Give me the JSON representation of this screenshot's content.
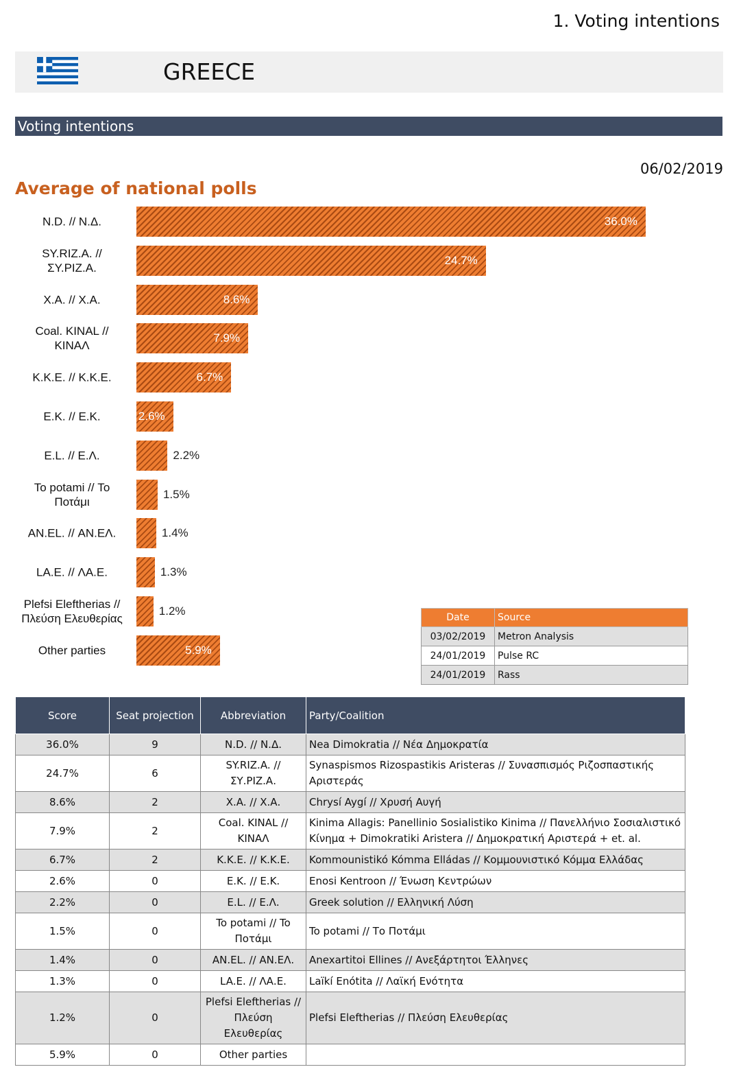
{
  "header": {
    "page_title": "1. Voting intentions",
    "country": "GREECE",
    "section": "Voting intentions",
    "date": "06/02/2019"
  },
  "chart_data": {
    "type": "bar",
    "orientation": "horizontal",
    "title": "Average of national polls",
    "categories": [
      "N.D. // Ν.Δ.",
      "SY.RIZ.A. // ΣΥ.ΡΙΖ.Α.",
      "X.A. // Χ.Α.",
      "Coal. KINAL // ΚΙΝΑΛ",
      "K.K.E. // Κ.Κ.Ε.",
      "E.K. // Ε.Κ.",
      "E.L. // Ε.Λ.",
      "To potami // Το Ποτάμι",
      "AN.EL. // ΑΝ.ΕΛ.",
      "LA.E. // ΛΑ.Ε.",
      "Plefsi Eleftherias // Πλεύση Ελευθερίας",
      "Other parties"
    ],
    "values": [
      36.0,
      24.7,
      8.6,
      7.9,
      6.7,
      2.6,
      2.2,
      1.5,
      1.4,
      1.3,
      1.2,
      5.9
    ],
    "value_labels": [
      "36.0%",
      "24.7%",
      "8.6%",
      "7.9%",
      "6.7%",
      "2.6%",
      "2.2%",
      "1.5%",
      "1.4%",
      "1.3%",
      "1.2%",
      "5.9%"
    ],
    "color": "#ee7d31"
  },
  "sources": {
    "header": [
      "Date",
      "Source"
    ],
    "rows": [
      [
        "03/02/2019",
        "Metron Analysis"
      ],
      [
        "24/01/2019",
        "Pulse RC"
      ],
      [
        "24/01/2019",
        "Rass"
      ]
    ]
  },
  "table": {
    "header": [
      "Score",
      "Seat projection",
      "Abbreviation",
      "Party/Coalition"
    ],
    "rows": [
      [
        "36.0%",
        9,
        "N.D. // Ν.Δ.",
        "Nea Dimokratia // Νέα Δημοκρατία"
      ],
      [
        "24.7%",
        6,
        "SY.RIZ.A. // ΣΥ.ΡΙΖ.Α.",
        "Synaspismos Rizospastikis Aristeras // Συνασπισμός Ριζοσπαστικής Αριστεράς"
      ],
      [
        "8.6%",
        2,
        "X.A. // Χ.Α.",
        "Chrysí Aygí // Χρυσή Αυγή"
      ],
      [
        "7.9%",
        2,
        "Coal. KINAL // ΚΙΝΑΛ",
        "Kinima Allagis: Panellinio Sosialistiko Kinima // Πανελλήνιο Σοσιαλιστικό Κίνημα + Dimokratiki Aristera // Δημοκρατική Αριστερά + et. al."
      ],
      [
        "6.7%",
        2,
        "K.K.E. // Κ.Κ.Ε.",
        "Kommounistikó Kómma Elládas // Κομμουνιστικό Κόμμα Ελλάδας"
      ],
      [
        "2.6%",
        0,
        "E.K. // Ε.Κ.",
        "Enosi Kentroon // Ένωση Κεντρώων"
      ],
      [
        "2.2%",
        0,
        "E.L. // Ε.Λ.",
        "Greek solution // Ελληνική Λύση"
      ],
      [
        "1.5%",
        0,
        "To potami // To Ποτάμι",
        "To potami // Το Ποτάμι"
      ],
      [
        "1.4%",
        0,
        "AN.EL. // ΑΝ.ΕΛ.",
        "Anexartitoi Ellines // Ανεξάρτητοι Έλληνες"
      ],
      [
        "1.3%",
        0,
        "LA.E. // ΛΑ.Ε.",
        "Laïkí Enótita // Λαϊκή Ενότητα"
      ],
      [
        "1.2%",
        0,
        "Plefsi Eleftherias // Πλεύση Ελευθερίας",
        "Plefsi Eleftherias // Πλεύση Ελευθερίας"
      ],
      [
        "5.9%",
        0,
        "Other parties",
        null
      ]
    ]
  }
}
